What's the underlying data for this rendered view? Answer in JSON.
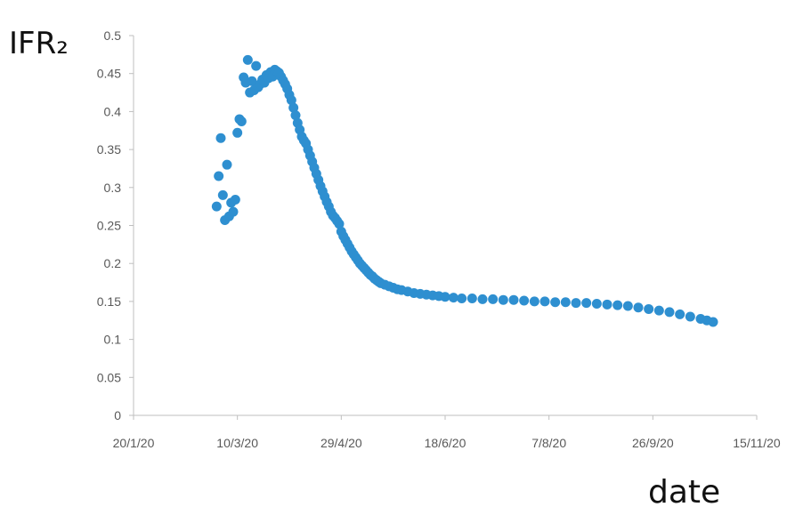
{
  "chart_data": {
    "type": "scatter",
    "xlabel": "date",
    "ylabel": "IFR₂",
    "x_ticks": [
      "20/1/20",
      "10/3/20",
      "29/4/20",
      "18/6/20",
      "7/8/20",
      "26/9/20",
      "15/11/20"
    ],
    "x_range": [
      "2020-01-20",
      "2020-11-15"
    ],
    "y_ticks": [
      "0",
      "0.05",
      "0.1",
      "0.15",
      "0.2",
      "0.25",
      "0.3",
      "0.35",
      "0.4",
      "0.45",
      "0.5"
    ],
    "ylim": [
      0,
      0.5
    ],
    "grid": false,
    "marker_color": "#2e8fd0",
    "points": [
      [
        "2020-02-29",
        0.275
      ],
      [
        "2020-03-01",
        0.315
      ],
      [
        "2020-03-02",
        0.365
      ],
      [
        "2020-03-03",
        0.29
      ],
      [
        "2020-03-04",
        0.257
      ],
      [
        "2020-03-05",
        0.33
      ],
      [
        "2020-03-06",
        0.262
      ],
      [
        "2020-03-07",
        0.28
      ],
      [
        "2020-03-08",
        0.268
      ],
      [
        "2020-03-09",
        0.284
      ],
      [
        "2020-03-10",
        0.372
      ],
      [
        "2020-03-11",
        0.39
      ],
      [
        "2020-03-12",
        0.387
      ],
      [
        "2020-03-13",
        0.445
      ],
      [
        "2020-03-14",
        0.438
      ],
      [
        "2020-03-15",
        0.468
      ],
      [
        "2020-03-16",
        0.425
      ],
      [
        "2020-03-17",
        0.44
      ],
      [
        "2020-03-18",
        0.428
      ],
      [
        "2020-03-19",
        0.46
      ],
      [
        "2020-03-20",
        0.432
      ],
      [
        "2020-03-21",
        0.436
      ],
      [
        "2020-03-22",
        0.442
      ],
      [
        "2020-03-23",
        0.438
      ],
      [
        "2020-03-24",
        0.448
      ],
      [
        "2020-03-25",
        0.444
      ],
      [
        "2020-03-26",
        0.452
      ],
      [
        "2020-03-27",
        0.446
      ],
      [
        "2020-03-28",
        0.455
      ],
      [
        "2020-03-29",
        0.453
      ],
      [
        "2020-03-30",
        0.451
      ],
      [
        "2020-03-31",
        0.446
      ],
      [
        "2020-04-01",
        0.441
      ],
      [
        "2020-04-02",
        0.436
      ],
      [
        "2020-04-03",
        0.43
      ],
      [
        "2020-04-04",
        0.422
      ],
      [
        "2020-04-05",
        0.415
      ],
      [
        "2020-04-06",
        0.405
      ],
      [
        "2020-04-07",
        0.395
      ],
      [
        "2020-04-08",
        0.385
      ],
      [
        "2020-04-09",
        0.376
      ],
      [
        "2020-04-10",
        0.367
      ],
      [
        "2020-04-11",
        0.362
      ],
      [
        "2020-04-12",
        0.358
      ],
      [
        "2020-04-13",
        0.35
      ],
      [
        "2020-04-14",
        0.342
      ],
      [
        "2020-04-15",
        0.334
      ],
      [
        "2020-04-16",
        0.326
      ],
      [
        "2020-04-17",
        0.318
      ],
      [
        "2020-04-18",
        0.31
      ],
      [
        "2020-04-19",
        0.302
      ],
      [
        "2020-04-20",
        0.295
      ],
      [
        "2020-04-21",
        0.288
      ],
      [
        "2020-04-22",
        0.281
      ],
      [
        "2020-04-23",
        0.275
      ],
      [
        "2020-04-24",
        0.268
      ],
      [
        "2020-04-25",
        0.263
      ],
      [
        "2020-04-26",
        0.26
      ],
      [
        "2020-04-27",
        0.256
      ],
      [
        "2020-04-28",
        0.252
      ],
      [
        "2020-04-29",
        0.242
      ],
      [
        "2020-04-30",
        0.236
      ],
      [
        "2020-05-01",
        0.231
      ],
      [
        "2020-05-02",
        0.226
      ],
      [
        "2020-05-03",
        0.221
      ],
      [
        "2020-05-04",
        0.216
      ],
      [
        "2020-05-05",
        0.212
      ],
      [
        "2020-05-06",
        0.208
      ],
      [
        "2020-05-07",
        0.204
      ],
      [
        "2020-05-08",
        0.2
      ],
      [
        "2020-05-09",
        0.197
      ],
      [
        "2020-05-10",
        0.194
      ],
      [
        "2020-05-11",
        0.191
      ],
      [
        "2020-05-12",
        0.188
      ],
      [
        "2020-05-13",
        0.185
      ],
      [
        "2020-05-14",
        0.183
      ],
      [
        "2020-05-15",
        0.18
      ],
      [
        "2020-05-16",
        0.178
      ],
      [
        "2020-05-17",
        0.176
      ],
      [
        "2020-05-18",
        0.174
      ],
      [
        "2020-05-20",
        0.172
      ],
      [
        "2020-05-22",
        0.17
      ],
      [
        "2020-05-24",
        0.168
      ],
      [
        "2020-05-26",
        0.166
      ],
      [
        "2020-05-28",
        0.165
      ],
      [
        "2020-05-31",
        0.163
      ],
      [
        "2020-06-03",
        0.161
      ],
      [
        "2020-06-06",
        0.16
      ],
      [
        "2020-06-09",
        0.159
      ],
      [
        "2020-06-12",
        0.158
      ],
      [
        "2020-06-15",
        0.157
      ],
      [
        "2020-06-18",
        0.156
      ],
      [
        "2020-06-22",
        0.155
      ],
      [
        "2020-06-26",
        0.154
      ],
      [
        "2020-07-01",
        0.154
      ],
      [
        "2020-07-06",
        0.153
      ],
      [
        "2020-07-11",
        0.153
      ],
      [
        "2020-07-16",
        0.152
      ],
      [
        "2020-07-21",
        0.152
      ],
      [
        "2020-07-26",
        0.151
      ],
      [
        "2020-07-31",
        0.15
      ],
      [
        "2020-08-05",
        0.15
      ],
      [
        "2020-08-10",
        0.149
      ],
      [
        "2020-08-15",
        0.149
      ],
      [
        "2020-08-20",
        0.148
      ],
      [
        "2020-08-25",
        0.148
      ],
      [
        "2020-08-30",
        0.147
      ],
      [
        "2020-09-04",
        0.146
      ],
      [
        "2020-09-09",
        0.145
      ],
      [
        "2020-09-14",
        0.144
      ],
      [
        "2020-09-19",
        0.142
      ],
      [
        "2020-09-24",
        0.14
      ],
      [
        "2020-09-29",
        0.138
      ],
      [
        "2020-10-04",
        0.136
      ],
      [
        "2020-10-09",
        0.133
      ],
      [
        "2020-10-14",
        0.13
      ],
      [
        "2020-10-19",
        0.127
      ],
      [
        "2020-10-22",
        0.125
      ],
      [
        "2020-10-25",
        0.123
      ]
    ]
  }
}
